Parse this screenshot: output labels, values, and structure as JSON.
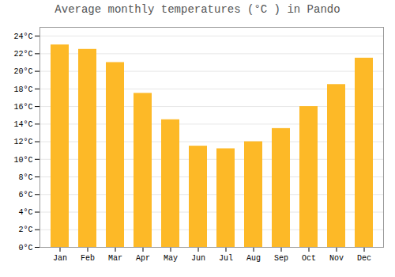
{
  "chart_data": {
    "type": "bar",
    "title": "Average monthly temperatures (°C ) in Pando",
    "categories": [
      "Jan",
      "Feb",
      "Mar",
      "Apr",
      "May",
      "Jun",
      "Jul",
      "Aug",
      "Sep",
      "Oct",
      "Nov",
      "Dec"
    ],
    "values": [
      23.0,
      22.5,
      21.0,
      17.5,
      14.5,
      11.5,
      11.2,
      12.0,
      13.5,
      16.0,
      18.5,
      21.5
    ],
    "color": "#FDB927",
    "ylim": [
      0,
      25
    ],
    "yticks": [
      {
        "value": 0,
        "label": "0°C"
      },
      {
        "value": 2,
        "label": "2°C"
      },
      {
        "value": 4,
        "label": "4°C"
      },
      {
        "value": 6,
        "label": "6°C"
      },
      {
        "value": 8,
        "label": "8°C"
      },
      {
        "value": 10,
        "label": "10°C"
      },
      {
        "value": 12,
        "label": "12°C"
      },
      {
        "value": 14,
        "label": "14°C"
      },
      {
        "value": 16,
        "label": "16°C"
      },
      {
        "value": 18,
        "label": "18°C"
      },
      {
        "value": 20,
        "label": "20°C"
      },
      {
        "value": 22,
        "label": "22°C"
      },
      {
        "value": 24,
        "label": "24°C"
      }
    ],
    "grid": true
  }
}
